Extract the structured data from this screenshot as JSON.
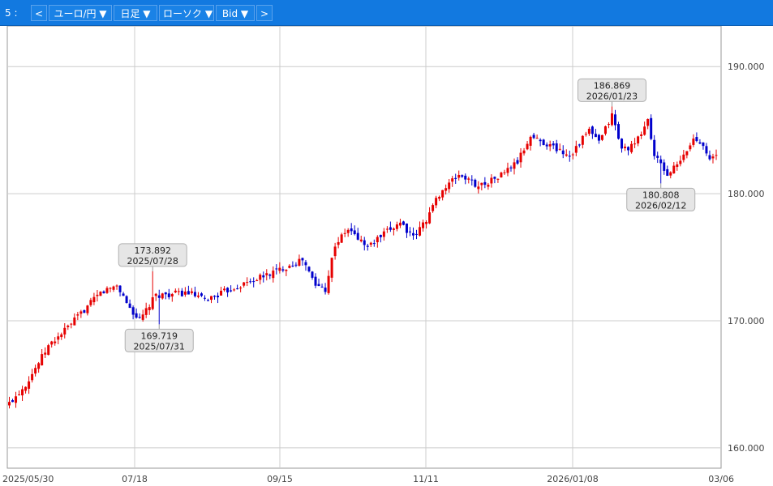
{
  "toolbar": {
    "slot": "5 :",
    "prev": "<",
    "pair": "ユーロ/円 ▼",
    "period": "日足 ▼",
    "chart_type": "ローソク ▼",
    "price_type": "Bid ▼",
    "next": ">"
  },
  "colors": {
    "up": "#e60000",
    "down": "#0000cc",
    "toolbar": "#1279e0",
    "grid": "#cccccc"
  },
  "chart_data": {
    "type": "candlestick",
    "y_ticks": [
      "160.000",
      "170.000",
      "180.000",
      "190.000"
    ],
    "ylim": [
      158.4,
      193.2
    ],
    "x_labels": [
      "2025/05/30",
      "07/18",
      "09/15",
      "11/11",
      "2026/01/08",
      "03/06"
    ],
    "grid": true,
    "annotations": [
      {
        "value": "173.892",
        "date": "2025/07/28",
        "kind": "high"
      },
      {
        "value": "169.719",
        "date": "2025/07/31",
        "kind": "low"
      },
      {
        "value": "186.869",
        "date": "2026/01/23",
        "kind": "high"
      },
      {
        "value": "180.808",
        "date": "2026/02/12",
        "kind": "low"
      }
    ],
    "close_anchors": [
      [
        0,
        163.5
      ],
      [
        5,
        165.0
      ],
      [
        12,
        168.0
      ],
      [
        18,
        169.5
      ],
      [
        28,
        172.2
      ],
      [
        33,
        172.8
      ],
      [
        37,
        171.0
      ],
      [
        40,
        170.0
      ],
      [
        45,
        172.0
      ],
      [
        55,
        172.2
      ],
      [
        60,
        171.6
      ],
      [
        68,
        172.5
      ],
      [
        78,
        173.5
      ],
      [
        90,
        174.8
      ],
      [
        94,
        172.8
      ],
      [
        97,
        172.5
      ],
      [
        100,
        176.0
      ],
      [
        104,
        177.2
      ],
      [
        110,
        175.8
      ],
      [
        120,
        177.8
      ],
      [
        124,
        176.5
      ],
      [
        128,
        178.0
      ],
      [
        132,
        180.0
      ],
      [
        138,
        181.5
      ],
      [
        144,
        180.6
      ],
      [
        150,
        181.3
      ],
      [
        156,
        182.5
      ],
      [
        160,
        184.5
      ],
      [
        166,
        183.8
      ],
      [
        172,
        183.0
      ],
      [
        178,
        185.0
      ],
      [
        181,
        184.0
      ],
      [
        185,
        186.2
      ],
      [
        188,
        183.5
      ],
      [
        192,
        183.8
      ],
      [
        196,
        185.8
      ],
      [
        198,
        183.0
      ],
      [
        202,
        181.5
      ],
      [
        206,
        182.5
      ],
      [
        210,
        184.3
      ],
      [
        213,
        184.0
      ],
      [
        215,
        182.6
      ],
      [
        217,
        183.0
      ]
    ]
  }
}
